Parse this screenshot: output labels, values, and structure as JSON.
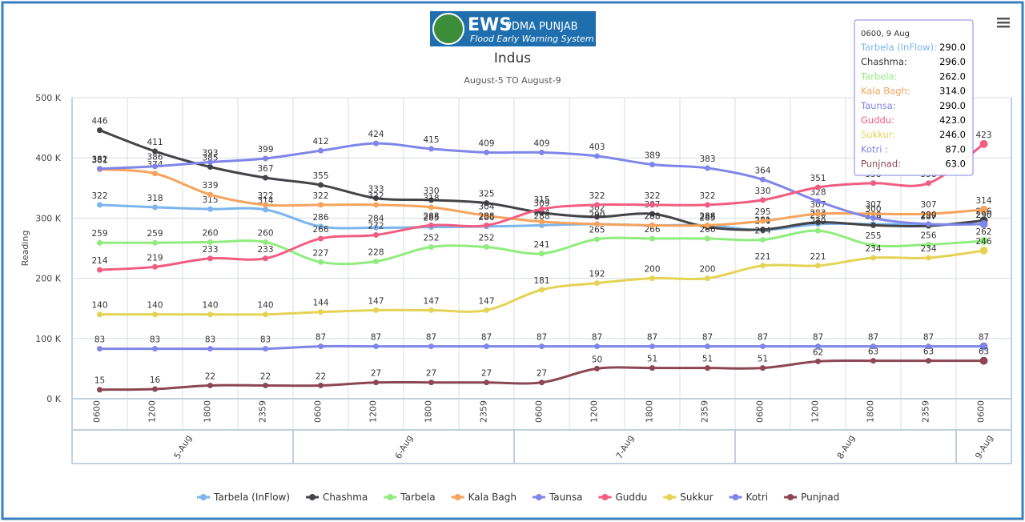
{
  "logo": {
    "title": "EWS",
    "subtitle": "PDMA PUNJAB",
    "tagline": "Flood Early Warning System"
  },
  "chart_data": {
    "type": "line",
    "title": "Indus",
    "subtitle": "August-5 TO August-9",
    "y_label": "Reading",
    "categories": [
      "0600",
      "1200",
      "1800",
      "2359",
      "0600",
      "1200",
      "1800",
      "2359",
      "0600",
      "1200",
      "1800",
      "2359",
      "0600",
      "1200",
      "1800",
      "2359",
      "0600"
    ],
    "category_groups": [
      {
        "label": "5-Aug",
        "count": 4
      },
      {
        "label": "6-Aug",
        "count": 4
      },
      {
        "label": "7-Aug",
        "count": 4
      },
      {
        "label": "8-Aug",
        "count": 4
      },
      {
        "label": "9-Aug",
        "count": 1
      }
    ],
    "ylim": [
      0,
      500
    ],
    "yticks": [
      {
        "value": 0,
        "label": "0 K"
      },
      {
        "value": 100,
        "label": "100 K"
      },
      {
        "value": 200,
        "label": "200 K"
      },
      {
        "value": 300,
        "label": "300 K"
      },
      {
        "value": 400,
        "label": "400 K"
      },
      {
        "value": 500,
        "label": "500 K"
      }
    ],
    "grid": true,
    "series": [
      {
        "name": "Tarbela (InFlow)",
        "color": "#7cb5ec",
        "values": [
          322,
          318,
          315,
          314,
          286,
          284,
          285,
          286,
          288,
          290,
          288,
          288,
          280,
          290,
          290,
          289,
          290
        ]
      },
      {
        "name": "Chashma",
        "color": "#434348",
        "values": [
          446,
          411,
          385,
          367,
          355,
          333,
          330,
          325,
          309,
          302,
          307,
          285,
          281,
          293,
          288,
          287,
          296
        ]
      },
      {
        "name": "Tarbela",
        "color": "#90ed7d",
        "values": [
          259,
          259,
          260,
          260,
          227,
          228,
          252,
          252,
          241,
          265,
          266,
          266,
          264,
          279,
          255,
          256,
          262
        ]
      },
      {
        "name": "Kala Bagh",
        "color": "#f7a35c",
        "values": [
          381,
          374,
          339,
          322,
          322,
          322,
          318,
          304,
          294,
          290,
          288,
          288,
          295,
          307,
          307,
          307,
          314
        ]
      },
      {
        "name": "Taunsa",
        "color": "#8085e9",
        "values": [
          382,
          386,
          393,
          399,
          412,
          424,
          415,
          409,
          409,
          403,
          389,
          383,
          364,
          328,
          300,
          290,
          290
        ]
      },
      {
        "name": "Guddu",
        "color": "#f15c80",
        "values": [
          214,
          219,
          233,
          233,
          266,
          272,
          288,
          288,
          315,
          322,
          322,
          322,
          330,
          351,
          358,
          358,
          423
        ]
      },
      {
        "name": "Sukkur",
        "color": "#e4d354",
        "values": [
          140,
          140,
          140,
          140,
          144,
          147,
          147,
          147,
          181,
          192,
          200,
          200,
          221,
          221,
          234,
          234,
          246
        ]
      },
      {
        "name": "Kotri",
        "color": "#8085e8",
        "values": [
          83,
          83,
          83,
          83,
          87,
          87,
          87,
          87,
          87,
          87,
          87,
          87,
          87,
          87,
          87,
          87,
          87
        ]
      },
      {
        "name": "Punjnad",
        "color": "#8d4653",
        "values": [
          15,
          16,
          22,
          22,
          22,
          27,
          27,
          27,
          27,
          50,
          51,
          51,
          51,
          62,
          63,
          63,
          63
        ]
      }
    ],
    "tooltip": {
      "title": "0600, 9 Aug",
      "names": [
        "Tarbela (InFlow):",
        "Chashma:",
        "Tarbela:",
        "Kala Bagh:",
        "Taunsa:",
        "Guddu:",
        "Sukkur:",
        "Kotri :",
        "Punjnad:"
      ],
      "values": [
        290,
        296,
        262,
        314,
        290,
        423,
        246,
        87,
        63
      ],
      "value_labels": [
        "290.0",
        "296.0",
        "262.0",
        "314.0",
        "290.0",
        "423.0",
        "246.0",
        "87.0",
        "63.0"
      ]
    }
  }
}
